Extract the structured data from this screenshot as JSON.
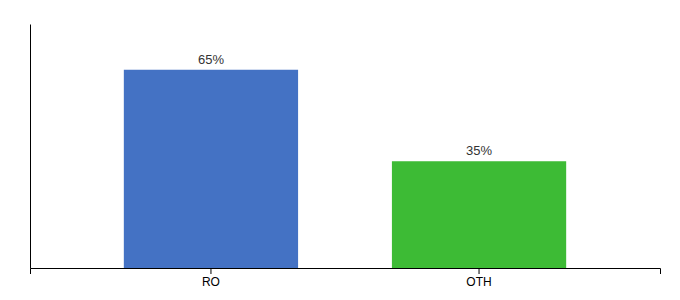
{
  "chart_data": {
    "type": "bar",
    "categories": [
      "RO",
      "OTH"
    ],
    "values": [
      65,
      35
    ],
    "value_labels": [
      "65%",
      "35%"
    ],
    "colors": [
      "#4472c4",
      "#3dbb35"
    ],
    "ylim": [
      0,
      80
    ],
    "data_labels": true,
    "tick_labels": "x"
  }
}
